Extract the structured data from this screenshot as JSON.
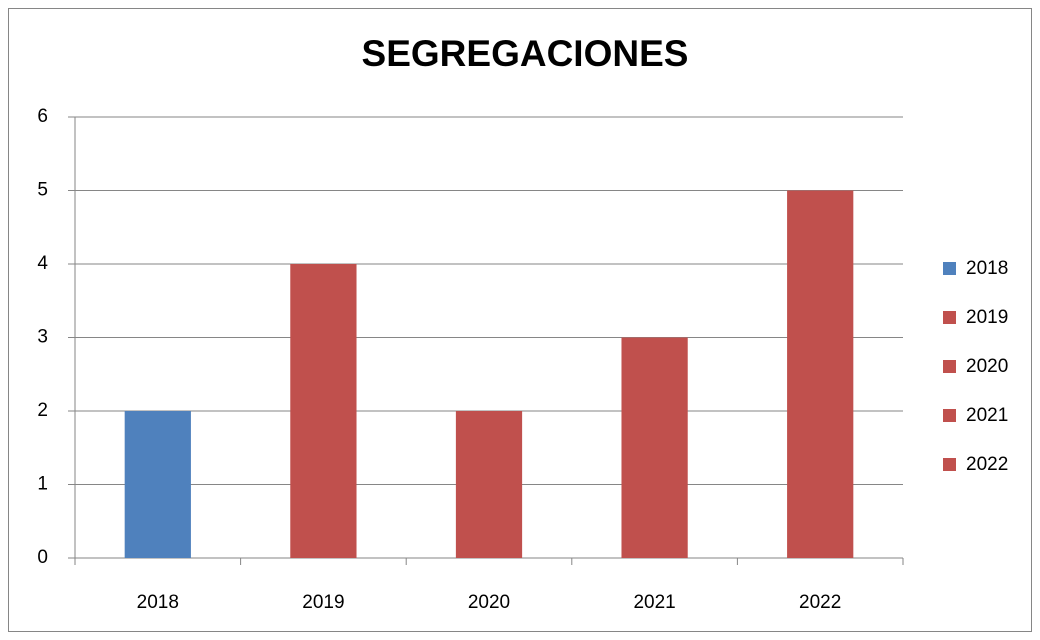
{
  "chart_data": {
    "type": "bar",
    "title": "SEGREGACIONES",
    "categories": [
      "2018",
      "2019",
      "2020",
      "2021",
      "2022"
    ],
    "values": [
      2,
      4,
      2,
      3,
      5
    ],
    "colors": [
      "#4f81bd",
      "#c0504d",
      "#c0504d",
      "#c0504d",
      "#c0504d"
    ],
    "ylim": [
      0,
      6
    ],
    "yticks": [
      0,
      1,
      2,
      3,
      4,
      5,
      6
    ],
    "grid": true,
    "legend": "right"
  }
}
